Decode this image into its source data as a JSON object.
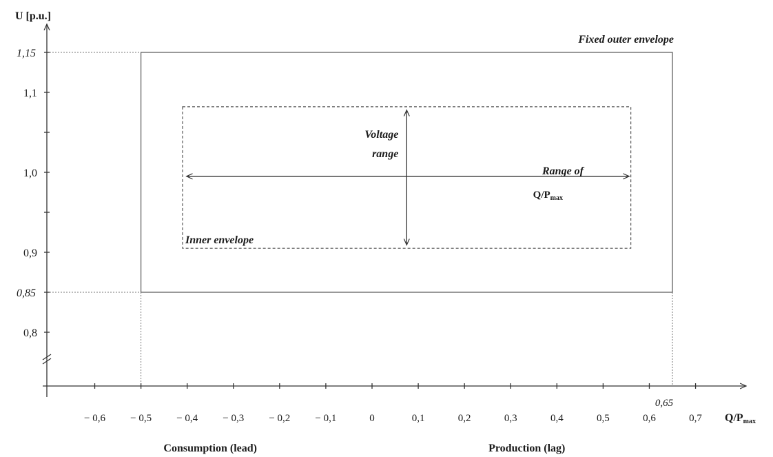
{
  "chart_data": {
    "type": "diagram",
    "y_axis": {
      "label": "U [p.u.]",
      "ticks": [
        {
          "label": "1,15",
          "value": 1.15,
          "italic": true
        },
        {
          "label": "1,1",
          "value": 1.1,
          "italic": false
        },
        {
          "label": "1,0",
          "value": 1.0,
          "italic": false
        },
        {
          "label": "0,9",
          "value": 0.9,
          "italic": false
        },
        {
          "label": "0,85",
          "value": 0.85,
          "italic": true
        },
        {
          "label": "0,8",
          "value": 0.8,
          "italic": false
        }
      ],
      "minor_ticks": [
        1.05,
        0.95
      ],
      "range": [
        0.76,
        1.2
      ],
      "axis_break": true
    },
    "x_axis": {
      "label_main": "Q/P",
      "label_sub": "max",
      "ticks": [
        {
          "label": "− 0,6",
          "value": -0.6
        },
        {
          "label": "− 0,5",
          "value": -0.5
        },
        {
          "label": "− 0,4",
          "value": -0.4
        },
        {
          "label": "− 0,3",
          "value": -0.3
        },
        {
          "label": "− 0,2",
          "value": -0.2
        },
        {
          "label": "− 0,1",
          "value": -0.1
        },
        {
          "label": "0",
          "value": 0
        },
        {
          "label": "0,1",
          "value": 0.1
        },
        {
          "label": "0,2",
          "value": 0.2
        },
        {
          "label": "0,3",
          "value": 0.3
        },
        {
          "label": "0,4",
          "value": 0.4
        },
        {
          "label": "0,5",
          "value": 0.5
        },
        {
          "label": "0,6",
          "value": 0.6
        },
        {
          "label": "0,7",
          "value": 0.7
        }
      ],
      "extra_tick": {
        "label": "0,65",
        "value": 0.65
      },
      "range": [
        -0.68,
        0.8
      ],
      "left_caption": "Consumption (lead)",
      "right_caption": "Production (lag)"
    },
    "outer_envelope": {
      "label": "Fixed outer envelope",
      "q_min": -0.5,
      "q_max": 0.65,
      "u_min": 0.85,
      "u_max": 1.15
    },
    "inner_envelope": {
      "label": "Inner envelope",
      "q_min": -0.41,
      "q_max": 0.56,
      "u_min": 0.905,
      "u_max": 1.082
    },
    "voltage_range_arrow": {
      "label_line1": "Voltage",
      "label_line2": "range",
      "q": 0.075,
      "u_min": 0.91,
      "u_max": 1.077
    },
    "q_range_arrow": {
      "label_line1": "Range of",
      "label_main": "Q/P",
      "label_sub": "max",
      "u": 0.995,
      "q_min": -0.4,
      "q_max": 0.555
    }
  }
}
